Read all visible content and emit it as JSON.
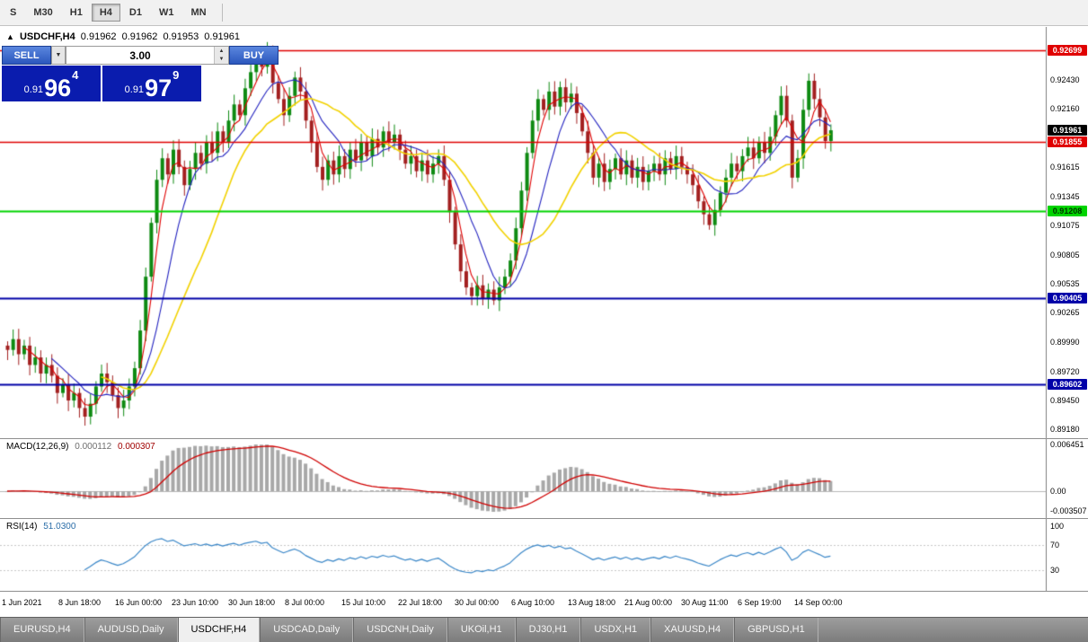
{
  "toolbar": {
    "timeframes": [
      {
        "label": "S",
        "active": false
      },
      {
        "label": "M30",
        "active": false
      },
      {
        "label": "H1",
        "active": false
      },
      {
        "label": "H4",
        "active": true
      },
      {
        "label": "D1",
        "active": false
      },
      {
        "label": "W1",
        "active": false
      },
      {
        "label": "MN",
        "active": false
      }
    ]
  },
  "chart_header": {
    "collapse_icon": "▲",
    "symbol": "USDCHF,H4",
    "open": "0.91962",
    "high": "0.91962",
    "low": "0.91953",
    "close": "0.91961"
  },
  "trade_panel": {
    "sell_label": "SELL",
    "buy_label": "BUY",
    "volume": "3.00",
    "sell_price": {
      "prefix": "0.91",
      "big": "96",
      "sup": "4"
    },
    "buy_price": {
      "prefix": "0.91",
      "big": "97",
      "sup": "9"
    }
  },
  "price_axis": {
    "ticks": [
      "0.92430",
      "0.92160",
      "0.91615",
      "0.91345",
      "0.91075",
      "0.90805",
      "0.90535",
      "0.90265",
      "0.89990",
      "0.89720",
      "0.89450",
      "0.89180"
    ],
    "badges": [
      {
        "label": "0.92699",
        "price": 0.92699,
        "bg": "#e00000",
        "fg": "#ffffff"
      },
      {
        "label": "0.91961",
        "price": 0.91961,
        "bg": "#000000",
        "fg": "#ffffff"
      },
      {
        "label": "0.91855",
        "price": 0.91855,
        "bg": "#e00000",
        "fg": "#ffffff"
      },
      {
        "label": "0.91208",
        "price": 0.91208,
        "bg": "#00d400",
        "fg": "#003300"
      },
      {
        "label": "0.90405",
        "price": 0.90405,
        "bg": "#0000a8",
        "fg": "#ffffff"
      },
      {
        "label": "0.89602",
        "price": 0.89602,
        "bg": "#0000a8",
        "fg": "#ffffff"
      }
    ]
  },
  "macd_panel": {
    "label": "MACD(12,26,9)",
    "value_main": "0.000112",
    "value_signal": "0.000307",
    "axis_ticks": [
      "0.006451",
      "0.00",
      "-0.003507"
    ]
  },
  "rsi_panel": {
    "label": "RSI(14)",
    "value": "51.0300",
    "axis_ticks": [
      "100",
      "70",
      "30"
    ]
  },
  "tabs": [
    {
      "label": "EURUSD,H4",
      "active": false
    },
    {
      "label": "AUDUSD,Daily",
      "active": false
    },
    {
      "label": "USDCHF,H4",
      "active": true
    },
    {
      "label": "USDCAD,Daily",
      "active": false
    },
    {
      "label": "USDCNH,Daily",
      "active": false
    },
    {
      "label": "UKOil,H1",
      "active": false
    },
    {
      "label": "DJ30,H1",
      "active": false
    },
    {
      "label": "USDX,H1",
      "active": false
    },
    {
      "label": "XAUUSD,H4",
      "active": false
    },
    {
      "label": "GBPUSD,H1",
      "active": false
    }
  ],
  "chart_data": {
    "type": "candlestick",
    "symbol": "USDCHF",
    "timeframe": "H4",
    "y_range": [
      0.891,
      0.9292
    ],
    "current_price": 0.91961,
    "x_labels": [
      "1 Jun 2021",
      "8 Jun 18:00",
      "16 Jun 00:00",
      "23 Jun 10:00",
      "30 Jun 18:00",
      "8 Jul 00:00",
      "15 Jul 10:00",
      "22 Jul 18:00",
      "30 Jul 00:00",
      "6 Aug 10:00",
      "13 Aug 18:00",
      "21 Aug 00:00",
      "30 Aug 11:00",
      "6 Sep 19:00",
      "14 Sep 00:00"
    ],
    "closes": [
      0.8992,
      0.9002,
      0.8988,
      0.8996,
      0.8978,
      0.8985,
      0.897,
      0.8978,
      0.8968,
      0.8952,
      0.896,
      0.8945,
      0.8952,
      0.8938,
      0.893,
      0.8942,
      0.8958,
      0.897,
      0.8962,
      0.895,
      0.8938,
      0.8945,
      0.8958,
      0.8975,
      0.901,
      0.906,
      0.911,
      0.915,
      0.917,
      0.9155,
      0.9178,
      0.9162,
      0.9145,
      0.916,
      0.9175,
      0.9165,
      0.9185,
      0.9175,
      0.9195,
      0.9185,
      0.9205,
      0.922,
      0.921,
      0.9235,
      0.925,
      0.9265,
      0.9255,
      0.9268,
      0.924,
      0.9225,
      0.921,
      0.9228,
      0.9245,
      0.9232,
      0.9205,
      0.9185,
      0.9162,
      0.915,
      0.9168,
      0.9155,
      0.9172,
      0.916,
      0.9178,
      0.9168,
      0.9185,
      0.9172,
      0.9188,
      0.918,
      0.9195,
      0.9185,
      0.9192,
      0.9178,
      0.9165,
      0.9172,
      0.9158,
      0.9168,
      0.9155,
      0.9165,
      0.9172,
      0.915,
      0.912,
      0.909,
      0.9065,
      0.905,
      0.9042,
      0.9052,
      0.904,
      0.9048,
      0.9038,
      0.905,
      0.906,
      0.9075,
      0.9105,
      0.914,
      0.9175,
      0.9205,
      0.9225,
      0.9215,
      0.9232,
      0.9218,
      0.9236,
      0.9222,
      0.923,
      0.9212,
      0.9195,
      0.9175,
      0.9152,
      0.9165,
      0.9148,
      0.916,
      0.917,
      0.9155,
      0.9168,
      0.9152,
      0.9162,
      0.9148,
      0.9158,
      0.9165,
      0.9155,
      0.917,
      0.916,
      0.9172,
      0.9162,
      0.9155,
      0.9145,
      0.913,
      0.9118,
      0.9108,
      0.9122,
      0.9138,
      0.9152,
      0.9165,
      0.9158,
      0.9172,
      0.918,
      0.917,
      0.9185,
      0.9175,
      0.919,
      0.921,
      0.9228,
      0.9205,
      0.9152,
      0.917,
      0.9215,
      0.9242,
      0.9225,
      0.9208,
      0.9186,
      0.9196
    ],
    "h_lines": [
      {
        "price": 0.92699,
        "color": "#e00000",
        "width": 1.4
      },
      {
        "price": 0.91855,
        "color": "#e00000",
        "width": 1.4
      },
      {
        "price": 0.91208,
        "color": "#00d400",
        "width": 2
      },
      {
        "price": 0.90405,
        "color": "#0000a8",
        "width": 2
      },
      {
        "price": 0.89602,
        "color": "#0000a8",
        "width": 2
      }
    ],
    "moving_averages": [
      {
        "period": 4,
        "color": "#e00000",
        "width": 1.1
      },
      {
        "period": 9,
        "color": "#2323c0",
        "width": 1.1
      },
      {
        "period": 18,
        "color": "#f2d200",
        "width": 1.6
      }
    ],
    "indicators": [
      {
        "type": "MACD",
        "params": [
          12,
          26,
          9
        ],
        "current": [
          0.000112,
          0.000307
        ],
        "axis_max": 0.006451,
        "axis_min": -0.003507,
        "histogram_color": "#a8a8a8",
        "signal_color": "#d00000"
      },
      {
        "type": "RSI",
        "params": [
          14
        ],
        "current": 51.03,
        "levels": [
          30,
          70
        ],
        "color": "#3a87c8"
      }
    ],
    "candle_up_color": "#0e8a12",
    "candle_down_color": "#a32020"
  }
}
